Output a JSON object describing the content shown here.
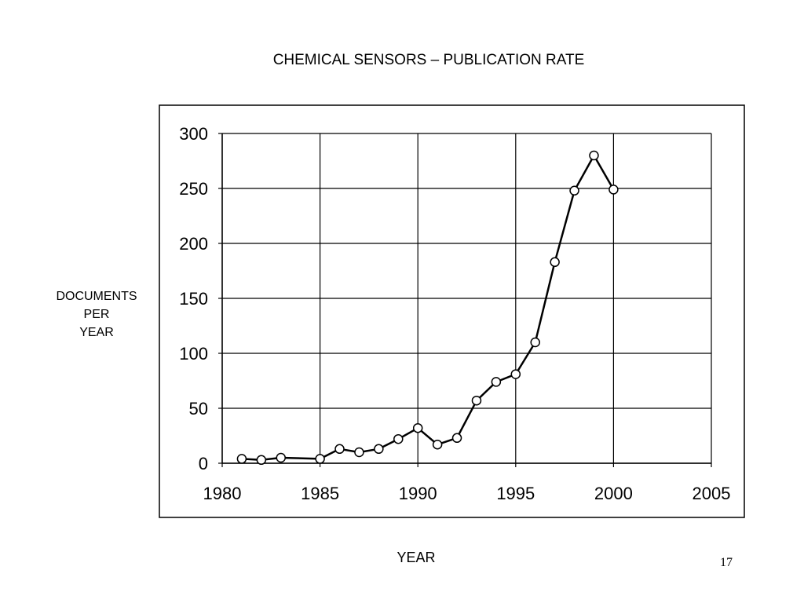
{
  "slide": {
    "title": "CHEMICAL SENSORS – PUBLICATION RATE",
    "page_number": "17"
  },
  "chart_data": {
    "type": "line",
    "title": "",
    "xlabel": "YEAR",
    "ylabel_lines": [
      "DOCUMENTS",
      "PER",
      "YEAR"
    ],
    "xlim": [
      1980,
      2005
    ],
    "ylim": [
      0,
      300
    ],
    "x_ticks": [
      1980,
      1985,
      1990,
      1995,
      2000,
      2005
    ],
    "y_ticks": [
      0,
      50,
      100,
      150,
      200,
      250,
      300
    ],
    "x_tick_labels": [
      "1980",
      "1985",
      "1990",
      "1995",
      "2000",
      "2005"
    ],
    "y_tick_labels": [
      "0",
      "50",
      "100",
      "150",
      "200",
      "250",
      "300"
    ],
    "grid": true,
    "legend": "none",
    "marker": "open-circle",
    "line_color": "#000000",
    "series": [
      {
        "x": [
          1981,
          1982,
          1983,
          1985,
          1986,
          1987,
          1988,
          1989,
          1990,
          1991,
          1992,
          1993,
          1994,
          1995,
          1996,
          1997,
          1998,
          1999,
          2000
        ],
        "y": [
          4,
          3,
          5,
          4,
          13,
          10,
          13,
          22,
          32,
          17,
          23,
          57,
          74,
          81,
          110,
          183,
          248,
          280,
          249
        ]
      }
    ]
  }
}
